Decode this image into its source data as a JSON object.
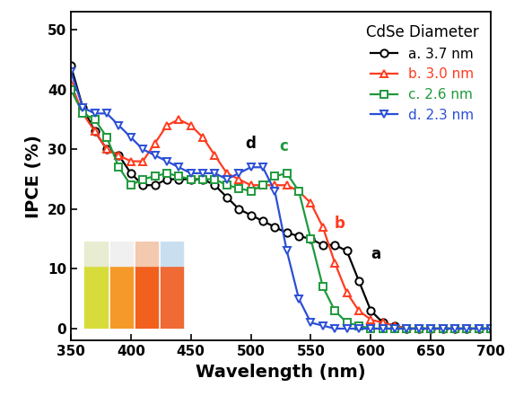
{
  "chart_data": {
    "type": "line",
    "x_label": "Wavelength (nm)",
    "y_label": "IPCE (%)",
    "legend_title": "CdSe Diameter",
    "legend": "upper right",
    "x": [
      350,
      360,
      370,
      380,
      390,
      400,
      410,
      420,
      430,
      440,
      450,
      460,
      470,
      480,
      490,
      500,
      510,
      520,
      530,
      540,
      550,
      560,
      570,
      580,
      590,
      600,
      610,
      620,
      630,
      640,
      650,
      660,
      670,
      680,
      690,
      700
    ],
    "series": [
      {
        "name": "a. 3.7 nm",
        "color": "#000000",
        "marker": "circle",
        "values": [
          44,
          37,
          33,
          30,
          29,
          26,
          24,
          24,
          25,
          25,
          25,
          25,
          24,
          22,
          20,
          19,
          18,
          17,
          16,
          15.5,
          15,
          14,
          14,
          13,
          8,
          3,
          1,
          0.5,
          0,
          0,
          0,
          0,
          0,
          0,
          0,
          0
        ]
      },
      {
        "name": "b. 3.0 nm",
        "color": "#ff3b1f",
        "marker": "triangle_up",
        "values": [
          41,
          36,
          33,
          30,
          29,
          28,
          28,
          31,
          34,
          35,
          34,
          32,
          29,
          26,
          25,
          24,
          24,
          24,
          24,
          23,
          21,
          17,
          11,
          6,
          3,
          1.5,
          1,
          0.5,
          0,
          0,
          0,
          0,
          0,
          0,
          0,
          0
        ]
      },
      {
        "name": "c. 2.6 nm",
        "color": "#1f9a3c",
        "marker": "square",
        "values": [
          40,
          36,
          35,
          32,
          27,
          24,
          25,
          25.5,
          26,
          25.5,
          25,
          25,
          25,
          24,
          23.5,
          23,
          24,
          25.5,
          26,
          23,
          15,
          7,
          3,
          1,
          0.5,
          0,
          0,
          0,
          0,
          0,
          0,
          0,
          0,
          0,
          0,
          0
        ]
      },
      {
        "name": "d. 2.3 nm",
        "color": "#2b4fd6",
        "marker": "triangle_down",
        "values": [
          43,
          37,
          36,
          36,
          34,
          32,
          30,
          29,
          28,
          27,
          26,
          26,
          26,
          25,
          26,
          27,
          27,
          23,
          13,
          5,
          1,
          0.5,
          0,
          0,
          0,
          0,
          0,
          0,
          0,
          0,
          0,
          0,
          0,
          0,
          0,
          0
        ]
      }
    ],
    "annotations": [
      {
        "text": "a",
        "x": 604,
        "y": 12.5,
        "color": "#000000"
      },
      {
        "text": "b",
        "x": 574,
        "y": 17.5,
        "color": "#ff3b1f"
      },
      {
        "text": "c",
        "x": 527,
        "y": 30.5,
        "color": "#1f9a3c"
      },
      {
        "text": "d",
        "x": 500,
        "y": 31,
        "color": "#000000"
      }
    ],
    "xlim": [
      350,
      700
    ],
    "xticks": [
      350,
      400,
      450,
      500,
      550,
      600,
      650,
      700
    ],
    "ylim": [
      -2,
      53
    ],
    "yticks": [
      0,
      10,
      20,
      30,
      40,
      50
    ]
  }
}
